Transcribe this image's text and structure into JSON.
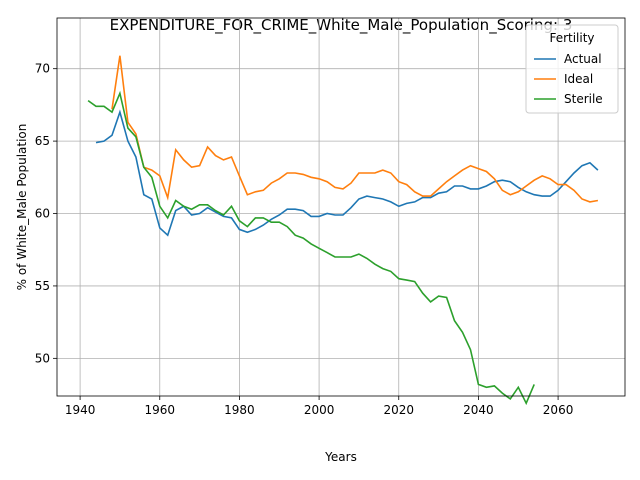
{
  "chart_data": {
    "type": "line",
    "title": "EXPENDITURE_FOR_CRIME_White_Male_Population_Scoring: 3",
    "x_label": "Years",
    "y_label": "% of White_Male Population",
    "legend_title": "Fertility",
    "legend_position": "upper right",
    "grid": true,
    "x": [
      1942,
      1944,
      1946,
      1948,
      1950,
      1952,
      1954,
      1956,
      1958,
      1960,
      1962,
      1964,
      1966,
      1968,
      1970,
      1972,
      1974,
      1976,
      1978,
      1980,
      1982,
      1984,
      1986,
      1988,
      1990,
      1992,
      1994,
      1996,
      1998,
      2000,
      2002,
      2004,
      2006,
      2008,
      2010,
      2012,
      2014,
      2016,
      2018,
      2020,
      2022,
      2024,
      2026,
      2028,
      2030,
      2032,
      2034,
      2036,
      2038,
      2040,
      2042,
      2044,
      2046,
      2048,
      2050,
      2052,
      2054,
      2056,
      2058,
      2060,
      2062,
      2064,
      2066,
      2068,
      2070
    ],
    "series": [
      {
        "name": "Actual",
        "color": "#1f77b4",
        "values": [
          null,
          64.9,
          65.0,
          65.4,
          67.0,
          65.0,
          63.9,
          61.3,
          61.0,
          59.0,
          58.5,
          60.2,
          60.5,
          59.9,
          60.0,
          60.4,
          60.1,
          59.8,
          59.7,
          58.9,
          58.7,
          58.9,
          59.2,
          59.6,
          59.9,
          60.3,
          60.3,
          60.2,
          59.8,
          59.8,
          60.0,
          59.9,
          59.9,
          60.4,
          61.0,
          61.2,
          61.1,
          61.0,
          60.8,
          60.5,
          60.7,
          60.8,
          61.1,
          61.1,
          61.4,
          61.5,
          61.9,
          61.9,
          61.7,
          61.7,
          61.9,
          62.2,
          62.3,
          62.2,
          61.8,
          61.5,
          61.3,
          61.2,
          61.2,
          61.6,
          62.2,
          62.8,
          63.3,
          63.5,
          63.0
        ]
      },
      {
        "name": "Ideal",
        "color": "#ff7f0e",
        "values": [
          null,
          null,
          null,
          67.2,
          70.9,
          66.3,
          65.5,
          63.2,
          63.0,
          62.6,
          61.1,
          64.4,
          63.7,
          63.2,
          63.3,
          64.6,
          64.0,
          63.7,
          63.9,
          62.6,
          61.3,
          61.5,
          61.6,
          62.1,
          62.4,
          62.8,
          62.8,
          62.7,
          62.5,
          62.4,
          62.2,
          61.8,
          61.7,
          62.1,
          62.8,
          62.8,
          62.8,
          63.0,
          62.8,
          62.2,
          62.0,
          61.5,
          61.2,
          61.2,
          61.7,
          62.2,
          62.6,
          63.0,
          63.3,
          63.1,
          62.9,
          62.4,
          61.6,
          61.3,
          61.5,
          61.9,
          62.3,
          62.6,
          62.4,
          62.0,
          62.0,
          61.6,
          61.0,
          60.8,
          60.9
        ]
      },
      {
        "name": "Sterile",
        "color": "#2ca02c",
        "values": [
          67.8,
          67.4,
          67.4,
          67.0,
          68.3,
          65.9,
          65.3,
          63.2,
          62.5,
          60.5,
          59.7,
          60.9,
          60.5,
          60.3,
          60.6,
          60.6,
          60.2,
          59.9,
          60.5,
          59.5,
          59.1,
          59.7,
          59.7,
          59.4,
          59.4,
          59.1,
          58.5,
          58.3,
          57.9,
          57.6,
          57.3,
          57.0,
          57.0,
          57.0,
          57.2,
          56.9,
          56.5,
          56.2,
          56.0,
          55.5,
          55.4,
          55.3,
          54.5,
          53.9,
          54.3,
          54.2,
          52.6,
          51.8,
          50.6,
          48.2,
          48.0,
          48.1,
          47.6,
          47.2,
          48.0,
          46.9,
          48.2,
          null,
          null,
          null,
          null,
          null,
          null,
          null,
          null
        ]
      }
    ],
    "xlim": [
      1934.2,
      2076.8
    ],
    "ylim": [
      47.4,
      73.5
    ],
    "xticks": [
      1940,
      1960,
      1980,
      2000,
      2020,
      2040,
      2060
    ],
    "yticks": [
      50,
      55,
      60,
      65,
      70
    ]
  }
}
